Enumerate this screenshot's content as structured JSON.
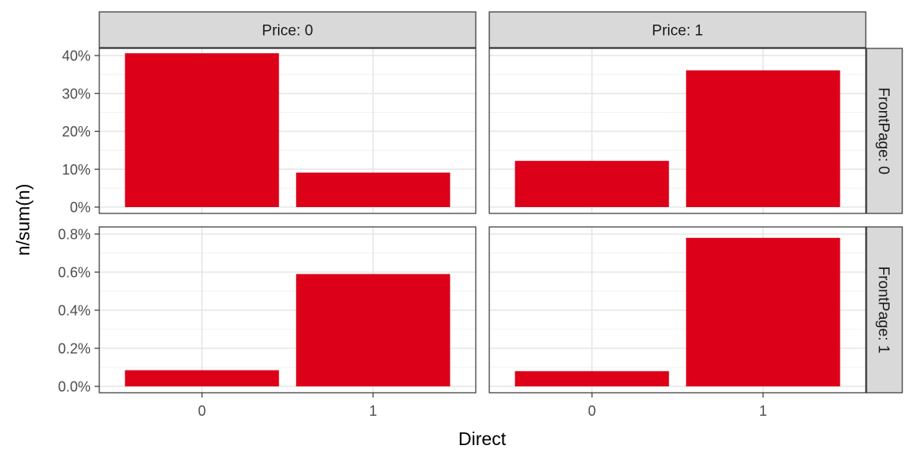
{
  "chart_data": {
    "type": "bar",
    "facet_layout": "grid",
    "xlabel": "Direct",
    "ylabel": "n/sum(n)",
    "categories": [
      "0",
      "1"
    ],
    "column_strips": [
      "Price: 0",
      "Price: 1"
    ],
    "row_strips": [
      "FrontPage: 0",
      "FrontPage: 1"
    ],
    "bar_color": "#DC0019",
    "grid": true,
    "scales": "free_y",
    "rows": [
      {
        "ylim": [
          0,
          0.4
        ],
        "y_ticks": [
          0,
          0.1,
          0.2,
          0.3,
          0.4
        ],
        "y_tick_labels": [
          "0%",
          "10%",
          "20%",
          "30%",
          "40%"
        ],
        "panels": [
          {
            "values": [
              0.406,
              0.091
            ]
          },
          {
            "values": [
              0.122,
              0.361
            ]
          }
        ]
      },
      {
        "ylim": [
          0,
          0.008
        ],
        "y_ticks": [
          0,
          0.002,
          0.004,
          0.006,
          0.008
        ],
        "y_tick_labels": [
          "0.0%",
          "0.2%",
          "0.4%",
          "0.6%",
          "0.8%"
        ],
        "panels": [
          {
            "values": [
              0.00085,
              0.0059
            ]
          },
          {
            "values": [
              0.0008,
              0.0078
            ]
          }
        ]
      }
    ]
  }
}
